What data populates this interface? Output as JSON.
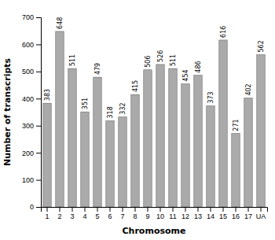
{
  "chart_data": {
    "type": "bar",
    "xlabel": "Chromosome",
    "ylabel": "Number of transcripts",
    "categories": [
      "1",
      "2",
      "3",
      "4",
      "5",
      "6",
      "7",
      "8",
      "9",
      "10",
      "11",
      "12",
      "13",
      "14",
      "15",
      "16",
      "17",
      "UA"
    ],
    "values": [
      383,
      648,
      511,
      351,
      479,
      318,
      332,
      415,
      506,
      526,
      511,
      454,
      486,
      373,
      616,
      271,
      402,
      562
    ],
    "color": "#aaaaaa",
    "ylim": [
      0,
      700
    ],
    "yticks": [
      0,
      100,
      200,
      300,
      400,
      500,
      600,
      700
    ],
    "data_labels": true,
    "grid": false
  }
}
